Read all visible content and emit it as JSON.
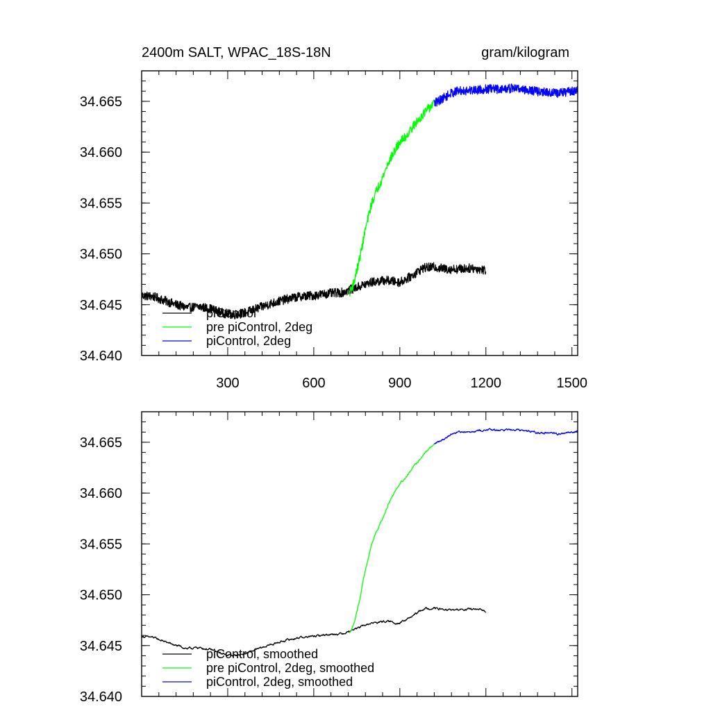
{
  "chart_data": [
    {
      "type": "line",
      "title": "2400m SALT, WPAC_18S-18N",
      "units": "gram/kilogram",
      "xlim": [
        0,
        1520
      ],
      "ylim": [
        34.64,
        34.668
      ],
      "xticks": [
        300,
        600,
        900,
        1200,
        1500
      ],
      "xtick_labels": [
        "300",
        "600",
        "900",
        "1200",
        "1500"
      ],
      "yticks": [
        34.64,
        34.645,
        34.65,
        34.655,
        34.66,
        34.665
      ],
      "ytick_labels": [
        "34.640",
        "34.645",
        "34.650",
        "34.655",
        "34.660",
        "34.665"
      ],
      "show_x_tick_labels": true,
      "legend_position": "bottom-left",
      "series": [
        {
          "name": "piControl",
          "color": "#000000",
          "noise": 0.00045,
          "x": [
            0,
            40,
            80,
            120,
            160,
            200,
            240,
            280,
            320,
            360,
            400,
            450,
            500,
            550,
            600,
            650,
            700,
            750,
            800,
            850,
            900,
            940,
            980,
            1020,
            1060,
            1100,
            1150,
            1200
          ],
          "y": [
            34.6459,
            34.6458,
            34.6454,
            34.645,
            34.6447,
            34.6448,
            34.6446,
            34.6442,
            34.644,
            34.6442,
            34.6446,
            34.6451,
            34.6455,
            34.6458,
            34.6459,
            34.6461,
            34.6462,
            34.6467,
            34.6472,
            34.6474,
            34.6472,
            34.6478,
            34.6486,
            34.6487,
            34.6485,
            34.6485,
            34.6486,
            34.6484
          ]
        },
        {
          "name": "pre piControl, 2deg",
          "color": "#00ff00",
          "noise": 0.00045,
          "x": [
            725,
            740,
            760,
            780,
            800,
            820,
            840,
            860,
            880,
            900,
            920,
            940,
            960,
            980,
            1000,
            1020
          ],
          "y": [
            34.6462,
            34.6472,
            34.6495,
            34.6524,
            34.6548,
            34.6563,
            34.6575,
            34.659,
            34.66,
            34.661,
            34.6615,
            34.6623,
            34.663,
            34.6637,
            34.6643,
            34.6648
          ]
        },
        {
          "name": "piControl, 2deg",
          "color": "#0000ff",
          "noise": 0.00045,
          "x": [
            1020,
            1050,
            1080,
            1100,
            1150,
            1200,
            1250,
            1300,
            1350,
            1400,
            1450,
            1500,
            1520
          ],
          "y": [
            34.6648,
            34.6653,
            34.6658,
            34.666,
            34.6661,
            34.6662,
            34.6662,
            34.6663,
            34.6661,
            34.6659,
            34.6658,
            34.666,
            34.6661
          ]
        }
      ]
    },
    {
      "type": "line",
      "title": "",
      "xlim": [
        0,
        1520
      ],
      "ylim": [
        34.64,
        34.668
      ],
      "xticks": [
        300,
        600,
        900,
        1200,
        1500
      ],
      "xtick_labels": [
        "300",
        "600",
        "900",
        "1200",
        "1500"
      ],
      "yticks": [
        34.64,
        34.645,
        34.65,
        34.655,
        34.66,
        34.665
      ],
      "ytick_labels": [
        "34.640",
        "34.645",
        "34.650",
        "34.655",
        "34.660",
        "34.665"
      ],
      "show_x_tick_labels": false,
      "legend_position": "bottom-left",
      "series": [
        {
          "name": "piControl, smoothed",
          "color": "#000000",
          "noise": 0.00012,
          "x": [
            0,
            40,
            80,
            120,
            160,
            200,
            240,
            280,
            320,
            360,
            400,
            450,
            500,
            550,
            600,
            650,
            700,
            750,
            800,
            850,
            900,
            940,
            980,
            1020,
            1060,
            1100,
            1150,
            1200
          ],
          "y": [
            34.6459,
            34.6458,
            34.6454,
            34.645,
            34.6447,
            34.6448,
            34.6446,
            34.6442,
            34.644,
            34.6442,
            34.6446,
            34.6451,
            34.6455,
            34.6458,
            34.6459,
            34.6461,
            34.6462,
            34.6467,
            34.6472,
            34.6474,
            34.6472,
            34.6478,
            34.6486,
            34.6487,
            34.6485,
            34.6485,
            34.6486,
            34.6484
          ]
        },
        {
          "name": "pre piControl, 2deg, smoothed",
          "color": "#00ff00",
          "noise": 0.00012,
          "x": [
            725,
            740,
            760,
            780,
            800,
            820,
            840,
            860,
            880,
            900,
            920,
            940,
            960,
            980,
            1000,
            1020
          ],
          "y": [
            34.6462,
            34.6472,
            34.6495,
            34.6524,
            34.6548,
            34.6563,
            34.6575,
            34.659,
            34.66,
            34.661,
            34.6615,
            34.6623,
            34.663,
            34.6637,
            34.6643,
            34.6648
          ]
        },
        {
          "name": "piControl, 2deg, smoothed",
          "color": "#0000ff",
          "noise": 0.00012,
          "x": [
            1020,
            1050,
            1080,
            1100,
            1150,
            1200,
            1250,
            1300,
            1350,
            1400,
            1450,
            1500,
            1520
          ],
          "y": [
            34.6648,
            34.6653,
            34.6658,
            34.666,
            34.6661,
            34.6662,
            34.6662,
            34.6663,
            34.6661,
            34.6659,
            34.6658,
            34.666,
            34.6661
          ]
        }
      ]
    }
  ]
}
